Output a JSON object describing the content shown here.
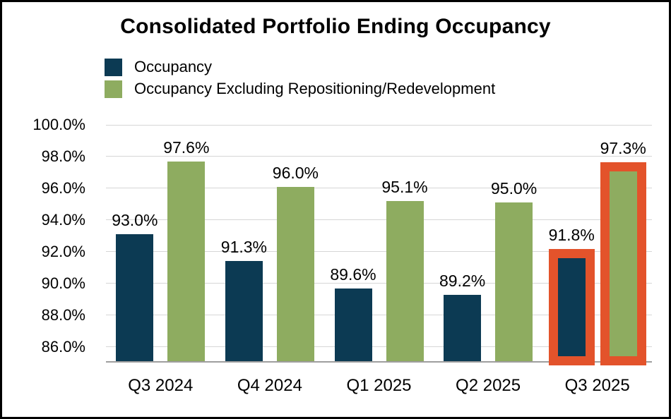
{
  "chart_data": {
    "type": "bar",
    "title": "Consolidated Portfolio Ending Occupancy",
    "categories": [
      "Q3 2024",
      "Q4 2024",
      "Q1 2025",
      "Q2 2025",
      "Q3 2025"
    ],
    "series": [
      {
        "name": "Occupancy",
        "color": "#0C3A53",
        "values": [
          93.0,
          91.3,
          89.6,
          89.2,
          91.8
        ],
        "labels": [
          "93.0%",
          "91.3%",
          "89.6%",
          "89.2%",
          "91.8%"
        ]
      },
      {
        "name": "Occupancy Excluding Repositioning/Redevelopment",
        "color": "#8EAC60",
        "values": [
          97.6,
          96.0,
          95.1,
          95.0,
          97.3
        ],
        "labels": [
          "97.6%",
          "96.0%",
          "95.1%",
          "95.0%",
          "97.3%"
        ]
      }
    ],
    "highlight": {
      "category": "Q3 2025",
      "category_index": 4,
      "color": "#E3532B"
    },
    "y_axis": {
      "min": 85.0,
      "max": 100.0,
      "tick_step": 2.0,
      "ticks": [
        {
          "label": "100.0%",
          "value": 100.0
        },
        {
          "label": "98.0%",
          "value": 98.0
        },
        {
          "label": "96.0%",
          "value": 96.0
        },
        {
          "label": "94.0%",
          "value": 94.0
        },
        {
          "label": "92.0%",
          "value": 92.0
        },
        {
          "label": "90.0%",
          "value": 90.0
        },
        {
          "label": "88.0%",
          "value": 88.0
        },
        {
          "label": "86.0%",
          "value": 86.0
        }
      ]
    },
    "grid": true,
    "legend_position": "top-left",
    "colors": {
      "gridline": "#d6d6d6",
      "axis_line": "#9e9e9e",
      "frame_border": "#000000",
      "background": "#ffffff",
      "text": "#000000"
    }
  }
}
